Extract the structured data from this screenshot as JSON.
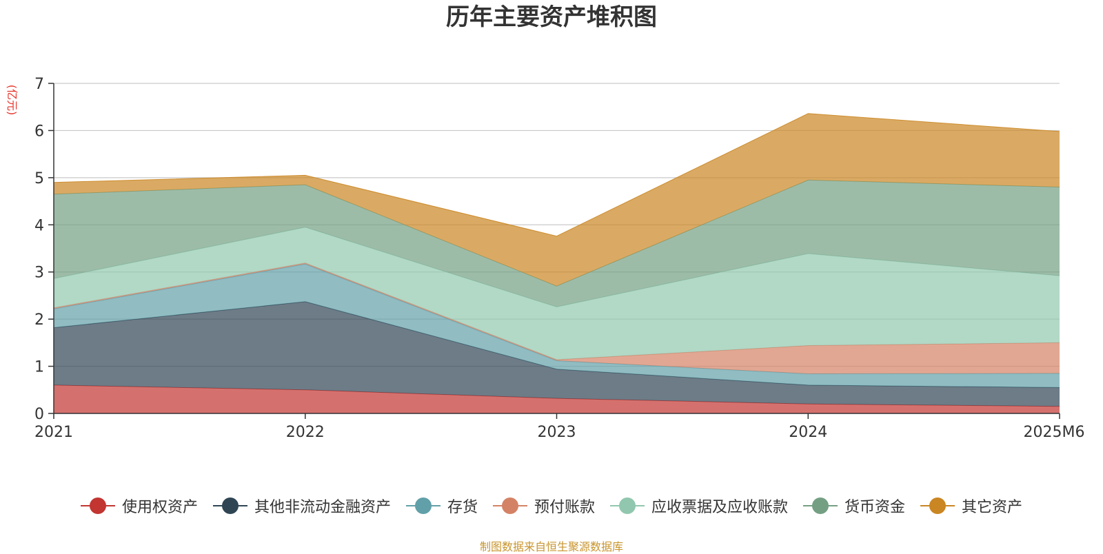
{
  "chart_data": {
    "type": "area",
    "stacked": true,
    "title": "历年主要资产堆积图",
    "yunit": "(亿元)",
    "ylim": [
      0,
      7
    ],
    "yticks": [
      0,
      1,
      2,
      3,
      4,
      5,
      6,
      7
    ],
    "grid": true,
    "categories": [
      "2021",
      "2022",
      "2023",
      "2024",
      "2025M6"
    ],
    "series": [
      {
        "name": "使用权资产",
        "color": "#c23531",
        "values": [
          0.6,
          0.5,
          0.32,
          0.2,
          0.15
        ]
      },
      {
        "name": "其他非流动金融资产",
        "color": "#2f4554",
        "values": [
          1.22,
          1.87,
          0.62,
          0.4,
          0.4
        ]
      },
      {
        "name": "存货",
        "color": "#61a0a8",
        "values": [
          0.4,
          0.8,
          0.18,
          0.24,
          0.3
        ]
      },
      {
        "name": "预付账款",
        "color": "#d48265",
        "values": [
          0.02,
          0.02,
          0.02,
          0.6,
          0.65
        ]
      },
      {
        "name": "应收票据及应收账款",
        "color": "#91c7ae",
        "values": [
          0.62,
          0.76,
          1.12,
          1.95,
          1.42
        ]
      },
      {
        "name": "货币资金",
        "color": "#749f83",
        "values": [
          1.79,
          0.9,
          0.44,
          1.56,
          1.88
        ]
      },
      {
        "name": "其它资产",
        "color": "#ca8622",
        "values": [
          0.25,
          0.2,
          1.06,
          1.41,
          1.18
        ]
      }
    ],
    "legend_position": "bottom-center"
  },
  "footer": {
    "source": "制图数据来自恒生聚源数据库"
  }
}
